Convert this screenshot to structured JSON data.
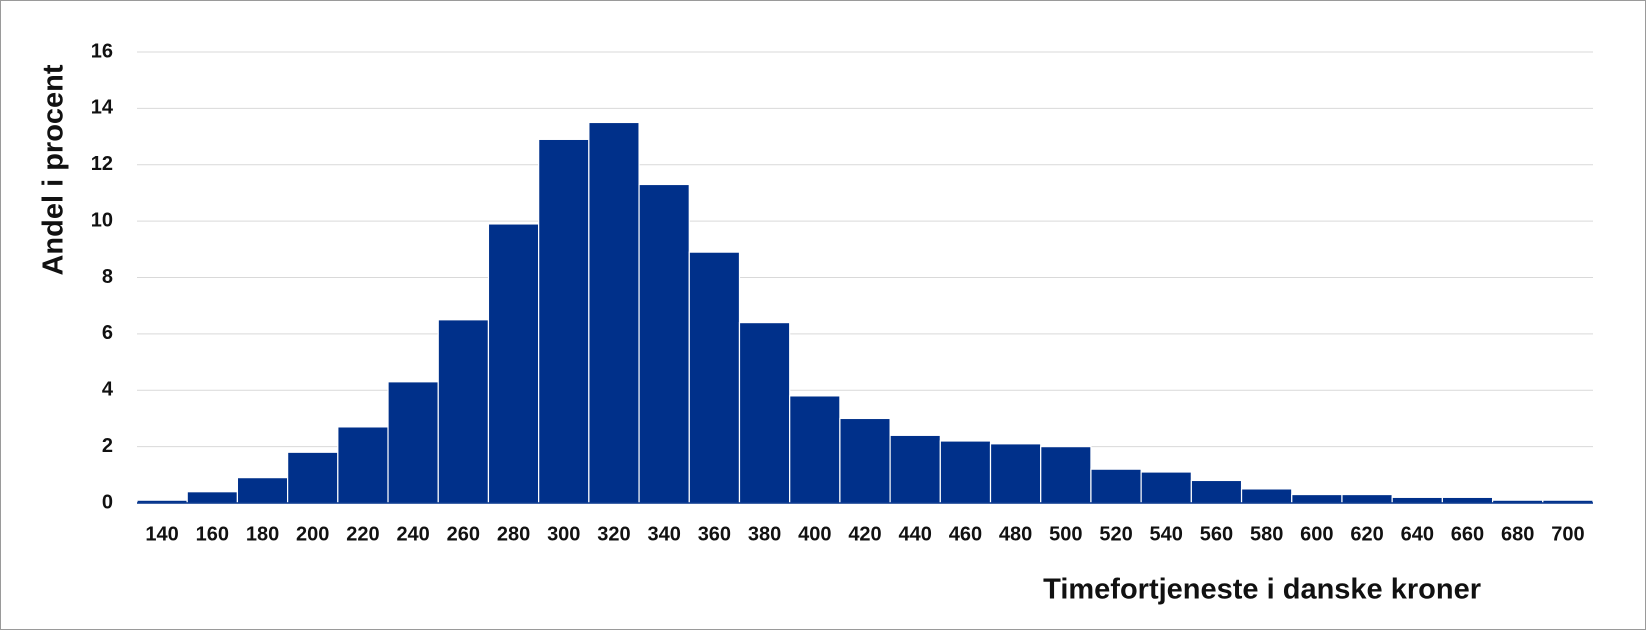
{
  "chart_data": {
    "type": "bar",
    "y_label": "Andel i procent",
    "x_label": "Timefortjeneste i danske kroner",
    "categories": [
      "140",
      "160",
      "180",
      "200",
      "220",
      "240",
      "260",
      "280",
      "300",
      "320",
      "340",
      "360",
      "380",
      "400",
      "420",
      "440",
      "460",
      "480",
      "500",
      "520",
      "540",
      "560",
      "580",
      "600",
      "620",
      "640",
      "660",
      "680",
      "700"
    ],
    "values": [
      0.1,
      0.4,
      0.9,
      1.8,
      2.7,
      4.3,
      6.5,
      9.9,
      12.9,
      13.5,
      11.3,
      8.9,
      6.4,
      3.8,
      3.0,
      2.4,
      2.2,
      2.1,
      2.0,
      1.2,
      1.1,
      0.8,
      0.5,
      0.3,
      0.3,
      0.2,
      0.2,
      0.1,
      0.1
    ],
    "color": "#00308a",
    "ylim": [
      0,
      16
    ],
    "yticks": [
      0,
      2,
      4,
      6,
      8,
      10,
      12,
      14,
      16
    ],
    "grid": true
  }
}
